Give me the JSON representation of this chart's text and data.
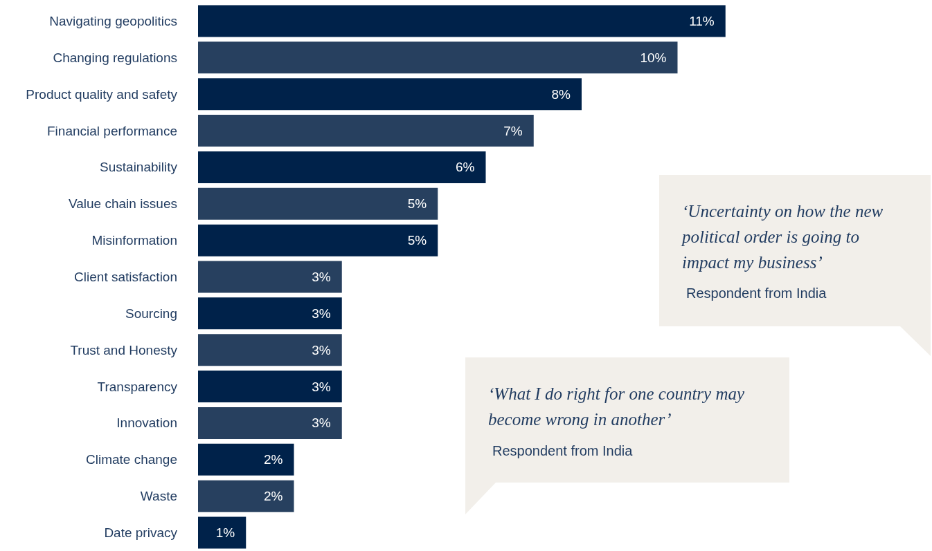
{
  "chart_data": {
    "type": "bar",
    "orientation": "horizontal",
    "categories": [
      "Navigating geopolitics",
      "Changing regulations",
      "Product quality and safety",
      "Financial performance",
      "Sustainability",
      "Value chain issues",
      "Misinformation",
      "Client satisfaction",
      "Sourcing",
      "Trust and Honesty",
      "Transparency",
      "Innovation",
      "Climate change",
      "Waste",
      "Date privacy"
    ],
    "values": [
      11,
      10,
      8,
      7,
      6,
      5,
      5,
      3,
      3,
      3,
      3,
      3,
      2,
      2,
      1
    ],
    "value_labels": [
      "11%",
      "10%",
      "8%",
      "7%",
      "6%",
      "5%",
      "5%",
      "3%",
      "3%",
      "3%",
      "3%",
      "3%",
      "2%",
      "2%",
      "1%"
    ],
    "colors": [
      "#00224a",
      "#27405f",
      "#00224a",
      "#27405f",
      "#00224a",
      "#27405f",
      "#00224a",
      "#27405f",
      "#00224a",
      "#27405f",
      "#00224a",
      "#27405f",
      "#00224a",
      "#27405f",
      "#00224a"
    ],
    "annotations": [
      "‘Uncertainty on how the new political order is going to impact my business’",
      "Respondent from India",
      "‘What I do right for one country may become wrong in another’",
      "Respondent from India"
    ]
  }
}
